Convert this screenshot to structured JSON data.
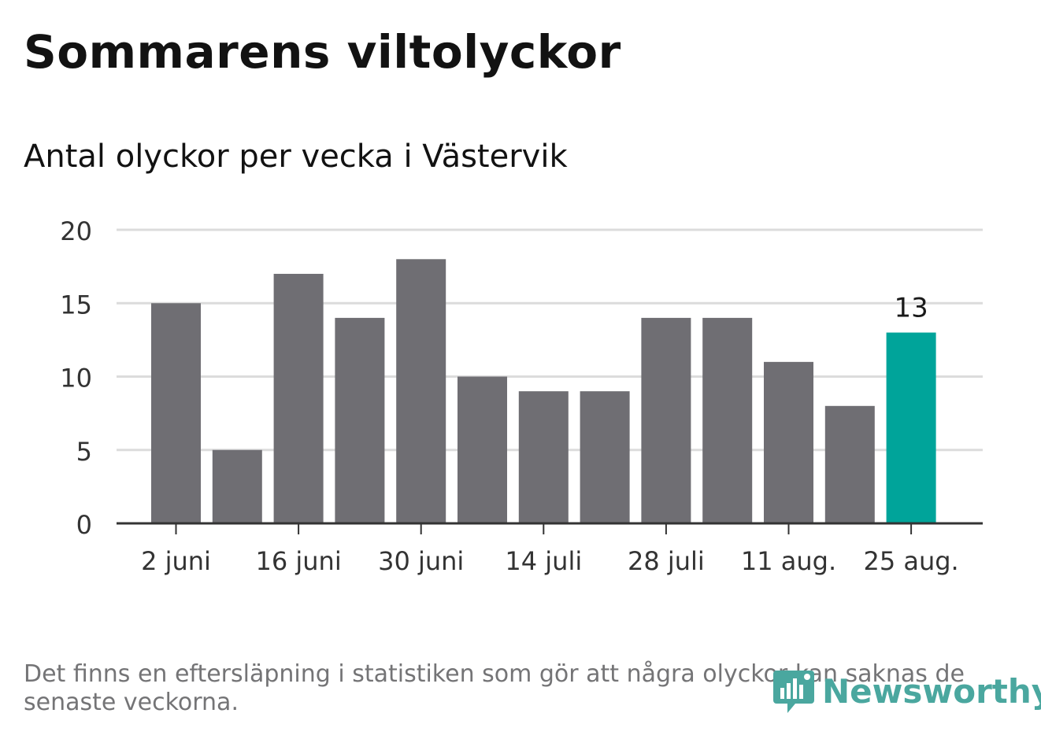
{
  "title": "Sommarens viltolyckor",
  "subtitle": "Antal olyckor per vecka i Västervik",
  "footnote": "Det finns en eftersläpning i statistiken som gör att några olyckor kan saknas de senaste veckorna.",
  "logo": {
    "text": "Newsworthy",
    "icon": "newsworthy-logo-icon",
    "color": "#4aa79f"
  },
  "colors": {
    "bar": "#6f6e73",
    "highlight": "#00a49a",
    "grid": "#dcdcdc",
    "axis": "#333333"
  },
  "chart_data": {
    "type": "bar",
    "title": "",
    "xlabel": "",
    "ylabel": "",
    "categories": [
      "2 juni",
      "",
      "16 juni",
      "",
      "30 juni",
      "",
      "14 juli",
      "",
      "28 juli",
      "",
      "11 aug.",
      "",
      "25 aug."
    ],
    "values": [
      15,
      5,
      17,
      14,
      18,
      10,
      9,
      9,
      14,
      14,
      11,
      8,
      13
    ],
    "highlight_index": 12,
    "highlight_label": "13",
    "ylim": [
      0,
      20
    ],
    "yticks": [
      0,
      5,
      10,
      15,
      20
    ],
    "grid": true,
    "legend": "none"
  }
}
